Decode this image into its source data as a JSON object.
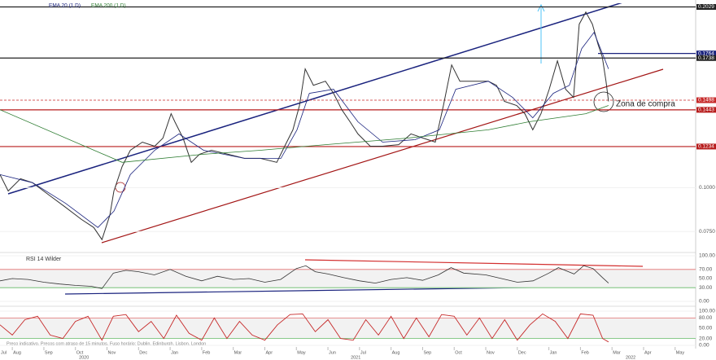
{
  "chart_data": [
    {
      "type": "line",
      "legend_items": [
        "EMA 20 (1 D)",
        "EMA 200 (1 D)"
      ],
      "annotation": "Zona de compra",
      "xlim": [
        -0.39,
        21.65
      ],
      "ylim": [
        0.064,
        0.205
      ],
      "yticks": [
        {
          "value": 0.1,
          "label": "0.1000"
        },
        {
          "value": 0.075,
          "label": "0.0750"
        }
      ],
      "levels": [
        {
          "value": 0.2029,
          "color": "#222222",
          "dashed": false
        },
        {
          "value": 0.1764,
          "color": "#1a237e",
          "dashed": false
        },
        {
          "value": 0.1738,
          "color": "#222222",
          "dashed": false
        },
        {
          "value": 0.1498,
          "color": "#c62828",
          "dashed": true
        },
        {
          "value": 0.1443,
          "color": "#b71c1c",
          "dashed": false
        },
        {
          "value": 0.1234,
          "color": "#b71c1c",
          "dashed": false
        }
      ],
      "series": [
        {
          "color": "#333333",
          "width": 1,
          "x": [
            -0.39,
            -0.13,
            0.26,
            0.64,
            1.16,
            1.68,
            2.19,
            2.58,
            2.84,
            3.09,
            3.22,
            3.48,
            3.74,
            4.12,
            4.51,
            4.77,
            5.03,
            5.15,
            5.41,
            5.67,
            5.93,
            6.31,
            6.83,
            7.35,
            7.86,
            8.38,
            8.63,
            8.89,
            9.1,
            9.28,
            9.54,
            9.92,
            10.18,
            10.44,
            10.7,
            10.95,
            11.34,
            11.73,
            12.24,
            12.63,
            13.02,
            13.4,
            13.66,
            13.92,
            14.18,
            14.56,
            15.08,
            15.34,
            15.59,
            15.98,
            16.24,
            16.49,
            16.75,
            17.01,
            17.27,
            17.53,
            17.78,
            17.96,
            18.17,
            18.38,
            18.56,
            18.69,
            18.81,
            18.89
          ],
          "values": [
            0.1074,
            0.0981,
            0.1051,
            0.1028,
            0.0958,
            0.0889,
            0.0819,
            0.0773,
            0.0704,
            0.0843,
            0.0981,
            0.112,
            0.1213,
            0.1259,
            0.1236,
            0.1282,
            0.1421,
            0.1375,
            0.1282,
            0.1144,
            0.119,
            0.1213,
            0.119,
            0.1167,
            0.1167,
            0.1144,
            0.1236,
            0.1329,
            0.1468,
            0.1676,
            0.1583,
            0.1606,
            0.1537,
            0.1444,
            0.1375,
            0.1306,
            0.1236,
            0.1236,
            0.1245,
            0.1306,
            0.1282,
            0.1259,
            0.1468,
            0.1699,
            0.1606,
            0.1606,
            0.1606,
            0.1583,
            0.1491,
            0.1468,
            0.1421,
            0.1329,
            0.1421,
            0.156,
            0.1722,
            0.156,
            0.1514,
            0.1931,
            0.2,
            0.1931,
            0.1815,
            0.1745,
            0.1606,
            0.1491
          ]
        },
        {
          "name": "EMA 20 (1 D)",
          "color": "#1a237e",
          "width": 0.8,
          "x": [
            -0.39,
            0.64,
            1.68,
            2.71,
            3.22,
            3.74,
            4.51,
            5.28,
            6.06,
            7.35,
            8.51,
            9.02,
            9.41,
            10.18,
            10.95,
            11.73,
            12.76,
            13.53,
            14.05,
            15.08,
            15.85,
            16.49,
            17.14,
            17.65,
            18.04,
            18.43,
            18.89
          ],
          "values": [
            0.1074,
            0.1028,
            0.0912,
            0.0773,
            0.0866,
            0.1074,
            0.1213,
            0.1306,
            0.1213,
            0.1167,
            0.1167,
            0.1329,
            0.1537,
            0.156,
            0.1375,
            0.1259,
            0.1273,
            0.1329,
            0.156,
            0.1606,
            0.1514,
            0.1398,
            0.1537,
            0.1583,
            0.1792,
            0.1884,
            0.1676
          ]
        },
        {
          "name": "EMA 200 (1 D)",
          "color": "#2e7d32",
          "width": 0.8,
          "x": [
            -0.39,
            3.48,
            6.06,
            7.86,
            9.92,
            12.5,
            15.08,
            16.37,
            18.17,
            18.89
          ],
          "values": [
            0.1444,
            0.1144,
            0.119,
            0.1213,
            0.1245,
            0.1282,
            0.1329,
            0.1375,
            0.1421,
            0.1468
          ]
        }
      ]
    },
    {
      "type": "line",
      "title": "RSI 14 Wilder",
      "xlim": [
        -0.39,
        21.65
      ],
      "ylim": [
        0,
        100
      ],
      "yticks": [
        {
          "value": 100,
          "label": "100.00"
        },
        {
          "value": 70,
          "label": "70.00"
        },
        {
          "value": 50,
          "label": "50.00"
        },
        {
          "value": 30,
          "label": "30.00"
        },
        {
          "value": 0,
          "label": "0.00"
        }
      ],
      "bands": [
        {
          "value": 70,
          "color": "#e57373"
        },
        {
          "value": 30,
          "color": "#66bb6a"
        }
      ],
      "series": [
        {
          "color": "#333333",
          "width": 0.8,
          "x": [
            -0.39,
            0,
            0.5,
            1,
            1.5,
            2,
            2.5,
            2.84,
            3.2,
            3.6,
            4,
            4.5,
            5,
            5.5,
            6,
            6.5,
            7,
            7.5,
            8,
            8.5,
            9,
            9.3,
            9.6,
            10,
            10.5,
            11,
            11.5,
            12,
            12.5,
            13,
            13.5,
            13.9,
            14.3,
            15,
            15.5,
            16,
            16.5,
            17,
            17.3,
            17.8,
            18.1,
            18.4,
            18.7,
            18.89
          ],
          "values": [
            45,
            50,
            48,
            42,
            38,
            35,
            33,
            28,
            62,
            68,
            65,
            58,
            70,
            55,
            45,
            55,
            48,
            50,
            42,
            48,
            72,
            78,
            65,
            60,
            52,
            45,
            40,
            48,
            52,
            46,
            58,
            74,
            62,
            58,
            50,
            42,
            45,
            62,
            74,
            60,
            78,
            72,
            52,
            40
          ]
        }
      ]
    },
    {
      "type": "line",
      "xlim": [
        -0.39,
        21.65
      ],
      "ylim": [
        0,
        100
      ],
      "yticks": [
        {
          "value": 100,
          "label": "100.00"
        },
        {
          "value": 80,
          "label": "80.00"
        },
        {
          "value": 50,
          "label": "50.00"
        },
        {
          "value": 20,
          "label": "20.00"
        },
        {
          "value": 0,
          "label": "0.00"
        }
      ],
      "bands": [
        {
          "value": 80,
          "color": "#e57373"
        },
        {
          "value": 20,
          "color": "#66bb6a"
        }
      ],
      "footnote": "Preço indicativo. Preços com atraso de 15 minutos.  Fuso horário: Dublin, Edinburgh, Lisbon, London",
      "xticks": [
        {
          "value": -1,
          "label": "Jul"
        },
        {
          "value": 0,
          "label": "Aug"
        },
        {
          "value": 1,
          "label": "Sep"
        },
        {
          "value": 2,
          "label": "Oct"
        },
        {
          "value": 3,
          "label": "Nov"
        },
        {
          "value": 4,
          "label": "Dec"
        },
        {
          "value": 5,
          "label": "Jan"
        },
        {
          "value": 6,
          "label": "Feb"
        },
        {
          "value": 7,
          "label": "Mar"
        },
        {
          "value": 8,
          "label": "Apr"
        },
        {
          "value": 9,
          "label": "May"
        },
        {
          "value": 10,
          "label": "Jun"
        },
        {
          "value": 11,
          "label": "Jul"
        },
        {
          "value": 12,
          "label": "Aug"
        },
        {
          "value": 13,
          "label": "Sep"
        },
        {
          "value": 14,
          "label": "Oct"
        },
        {
          "value": 15,
          "label": "Nov"
        },
        {
          "value": 16,
          "label": "Dec"
        },
        {
          "value": 17,
          "label": "Jan"
        },
        {
          "value": 18,
          "label": "Feb"
        },
        {
          "value": 19,
          "label": "Mar"
        },
        {
          "value": 20,
          "label": "Apr"
        },
        {
          "value": 21,
          "label": "May"
        }
      ],
      "year_ticks": [
        {
          "value": 2.27,
          "label": "2020"
        },
        {
          "value": 10.88,
          "label": "2021"
        },
        {
          "value": 19.59,
          "label": "2022"
        }
      ],
      "series": [
        {
          "color": "#c62828",
          "width": 0.9,
          "x": [
            -0.39,
            0,
            0.4,
            0.8,
            1.2,
            1.6,
            2,
            2.4,
            2.84,
            3.2,
            3.6,
            4,
            4.4,
            4.8,
            5.2,
            5.6,
            6,
            6.4,
            6.8,
            7.2,
            7.6,
            8,
            8.4,
            8.8,
            9.2,
            9.6,
            10,
            10.4,
            10.8,
            11.2,
            11.6,
            12,
            12.4,
            12.8,
            13.2,
            13.6,
            14,
            14.4,
            14.8,
            15.2,
            15.6,
            16,
            16.4,
            16.8,
            17.2,
            17.6,
            18,
            18.4,
            18.7,
            18.89
          ],
          "values": [
            60,
            30,
            75,
            85,
            30,
            20,
            70,
            85,
            15,
            85,
            90,
            40,
            70,
            20,
            88,
            35,
            15,
            80,
            20,
            70,
            30,
            15,
            60,
            90,
            92,
            40,
            75,
            20,
            15,
            75,
            30,
            85,
            20,
            80,
            25,
            90,
            85,
            30,
            80,
            20,
            75,
            15,
            60,
            92,
            70,
            20,
            92,
            88,
            20,
            10
          ]
        }
      ]
    }
  ]
}
